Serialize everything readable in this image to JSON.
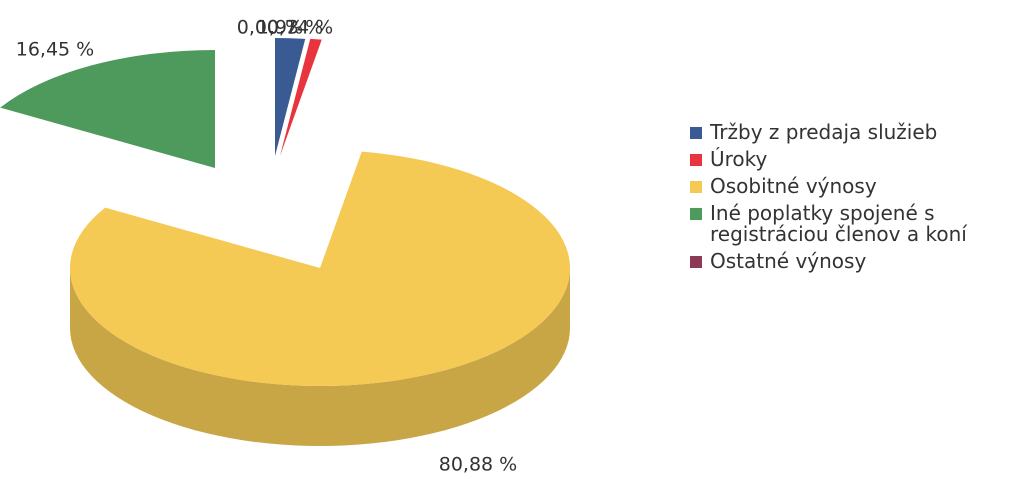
{
  "chart_data": {
    "type": "pie",
    "categories": [
      "Tržby z predaja služieb",
      "Úroky",
      "Osobitné výnosy",
      "Iné poplatky spojené s registráciou členov a koní",
      "Ostatné výnosy"
    ],
    "values": [
      1.93,
      0.74,
      80.88,
      16.45,
      0.0
    ],
    "value_labels": [
      "1,93 %",
      "0,74 %",
      "80,88 %",
      "16,45 %",
      "0,00 %"
    ],
    "colors": [
      "#3a5a94",
      "#e8343f",
      "#f4ca55",
      "#4e9a5c",
      "#8c3a55"
    ],
    "legend": "right"
  }
}
